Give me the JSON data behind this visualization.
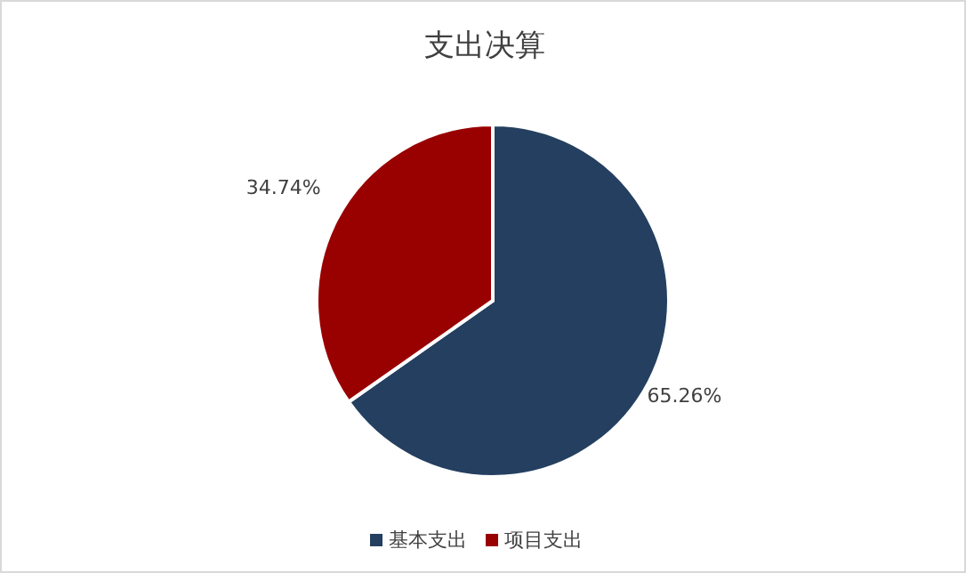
{
  "chart_data": {
    "type": "pie",
    "title": "支出决算",
    "categories": [
      "基本支出",
      "项目支出"
    ],
    "values": [
      65.26,
      34.74
    ],
    "colors": [
      "#243f60",
      "#990000"
    ],
    "value_labels": [
      "65.26%",
      "34.74%"
    ],
    "legend": "bottom"
  }
}
